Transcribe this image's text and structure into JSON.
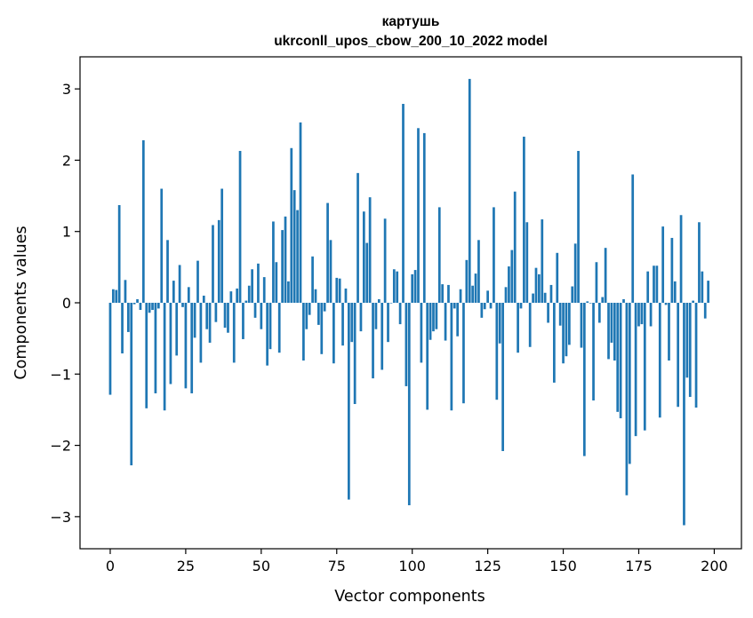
{
  "chart_data": {
    "type": "bar",
    "title_line1": "картушь",
    "title_line2": "ukrconll_upos_cbow_200_10_2022 model",
    "xlabel": "Vector components",
    "ylabel": "Components values",
    "xlim": [
      -10,
      209
    ],
    "ylim": [
      -3.45,
      3.45
    ],
    "x_ticks": [
      0,
      25,
      50,
      75,
      100,
      125,
      150,
      175,
      200
    ],
    "y_ticks": [
      -3,
      -2,
      -1,
      0,
      1,
      2,
      3
    ],
    "x_tick_labels": [
      "0",
      "25",
      "50",
      "75",
      "100",
      "125",
      "150",
      "175",
      "200"
    ],
    "y_tick_labels": [
      "−3",
      "−2",
      "−1",
      "0",
      "1",
      "2",
      "3"
    ],
    "bar_color": "#1f77b4",
    "values": [
      -1.29,
      0.19,
      0.18,
      1.37,
      -0.71,
      0.32,
      -0.41,
      -2.28,
      -0.02,
      0.05,
      -0.1,
      2.28,
      -1.48,
      -0.14,
      -0.1,
      -1.27,
      -0.08,
      1.6,
      -1.51,
      0.88,
      -1.14,
      0.31,
      -0.74,
      0.53,
      -0.06,
      -1.2,
      0.22,
      -1.27,
      -0.49,
      0.59,
      -0.84,
      0.1,
      -0.37,
      -0.56,
      1.09,
      -0.27,
      1.16,
      1.6,
      -0.35,
      -0.42,
      0.16,
      -0.84,
      0.2,
      2.13,
      -0.51,
      0.03,
      0.24,
      0.47,
      -0.21,
      0.55,
      -0.37,
      0.36,
      -0.88,
      -0.65,
      1.14,
      0.57,
      -0.7,
      1.02,
      1.21,
      0.3,
      2.17,
      1.58,
      1.3,
      2.53,
      -0.81,
      -0.37,
      -0.17,
      0.65,
      0.19,
      -0.31,
      -0.72,
      -0.12,
      1.4,
      0.88,
      -0.85,
      0.35,
      0.34,
      -0.6,
      0.2,
      -2.76,
      -0.55,
      -1.42,
      1.82,
      -0.4,
      1.28,
      0.84,
      1.48,
      -1.06,
      -0.37,
      0.05,
      -0.94,
      1.18,
      -0.55,
      0.0,
      0.47,
      0.44,
      -0.3,
      2.79,
      -1.17,
      -2.84,
      0.4,
      0.46,
      2.45,
      -0.84,
      2.38,
      -1.5,
      -0.52,
      -0.4,
      -0.37,
      1.34,
      0.26,
      -0.53,
      0.25,
      -1.51,
      -0.08,
      -0.47,
      0.19,
      -1.41,
      0.6,
      3.14,
      0.24,
      0.41,
      0.88,
      -0.21,
      -0.09,
      0.17,
      -0.08,
      1.34,
      -1.36,
      -0.57,
      -2.08,
      0.22,
      0.51,
      0.74,
      1.56,
      -0.7,
      -0.08,
      2.33,
      1.13,
      -0.62,
      0.13,
      0.49,
      0.4,
      1.17,
      0.14,
      -0.28,
      0.25,
      -1.12,
      0.7,
      -0.32,
      -0.85,
      -0.75,
      -0.59,
      0.23,
      0.83,
      2.13,
      -0.63,
      -2.15,
      0.02,
      0.0,
      -1.37,
      0.57,
      -0.28,
      0.08,
      0.77,
      -0.79,
      -0.56,
      -0.81,
      -1.53,
      -1.62,
      0.05,
      -2.7,
      -2.26,
      1.8,
      -1.87,
      -0.33,
      -0.3,
      -1.79,
      0.44,
      -0.33,
      0.52,
      0.52,
      -1.61,
      1.07,
      -0.03,
      -0.81,
      0.91,
      0.3,
      -1.46,
      1.23,
      -3.12,
      -1.05,
      -1.32,
      0.03,
      -1.47,
      1.13,
      0.44,
      -0.22,
      0.31
    ]
  }
}
